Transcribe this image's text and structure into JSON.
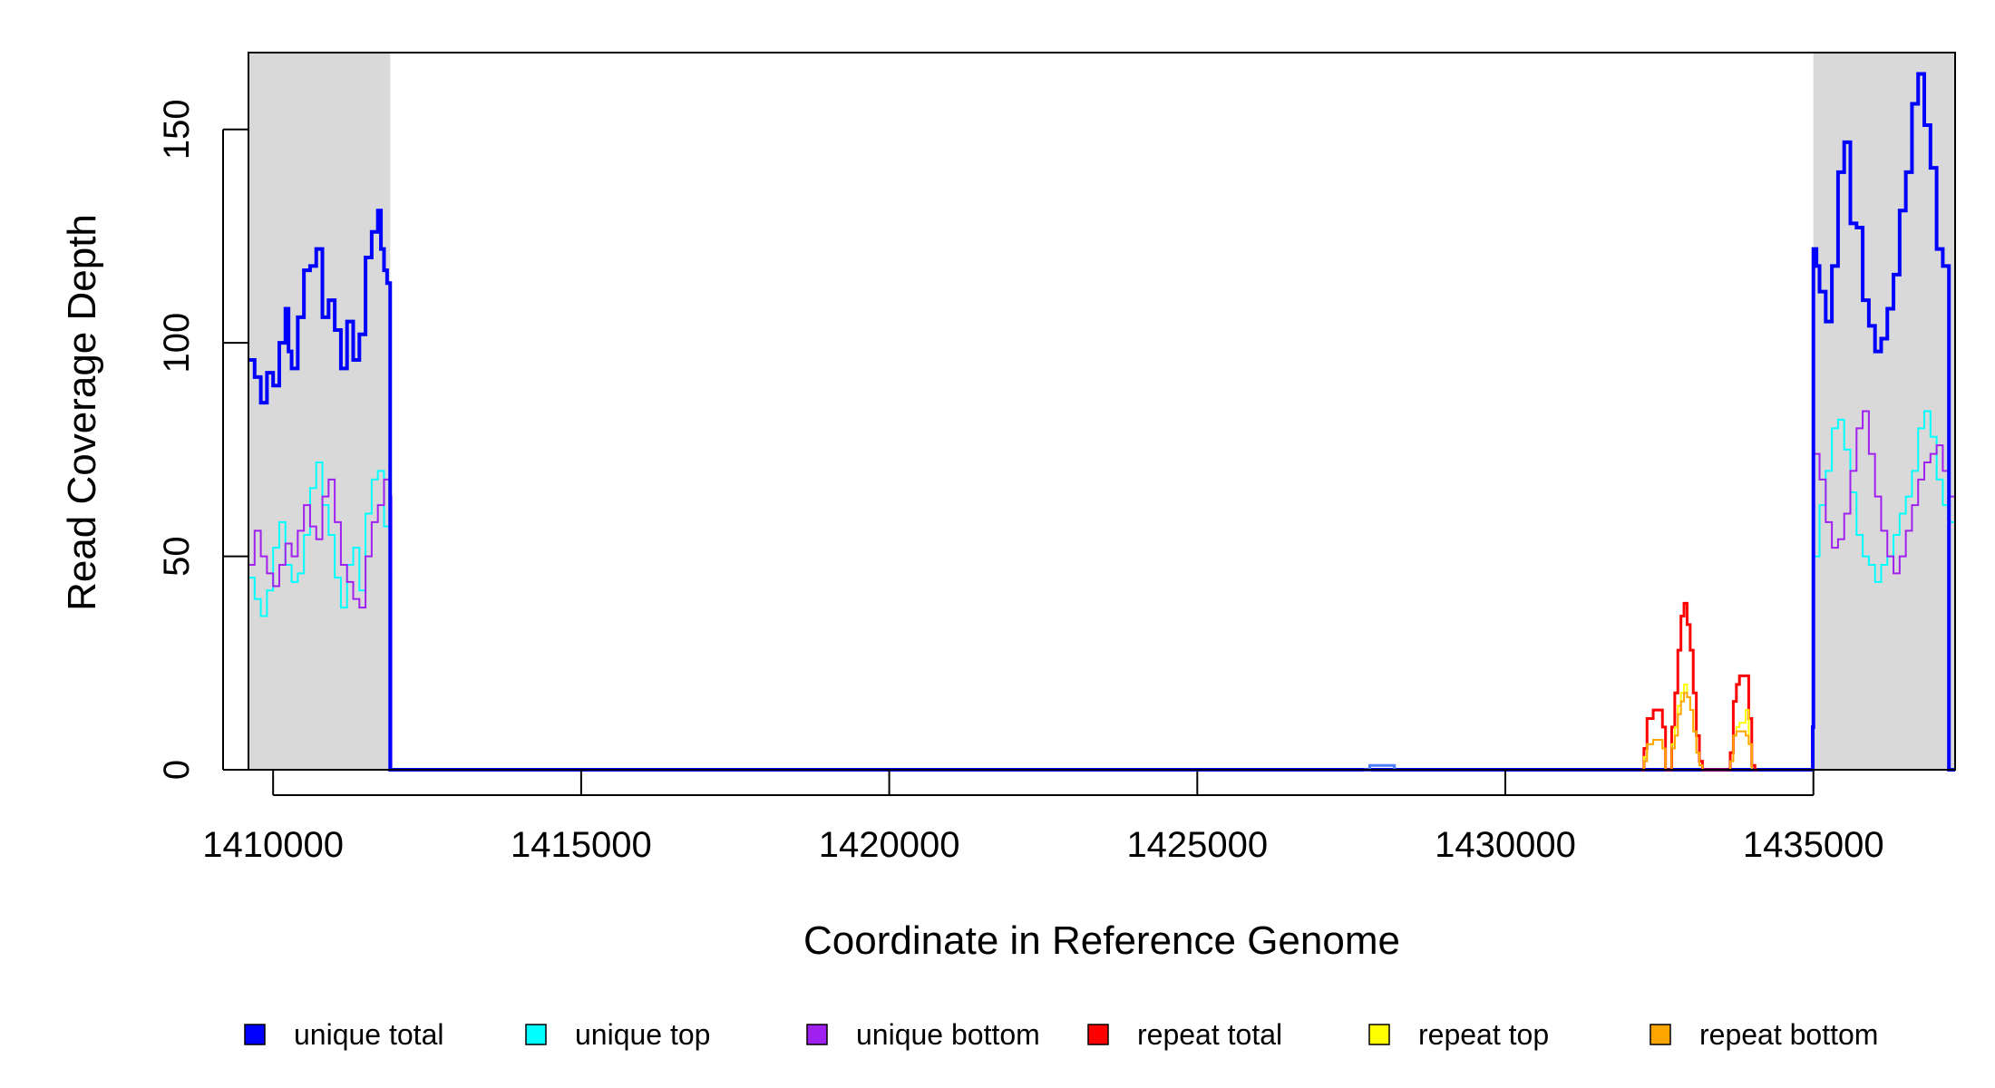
{
  "chart_data": {
    "type": "line",
    "title": "",
    "xlabel": "Coordinate in Reference Genome",
    "ylabel": "Read Coverage Depth",
    "xlim": [
      1409600,
      1437300
    ],
    "ylim": [
      0,
      168
    ],
    "xticks": [
      1410000,
      1415000,
      1420000,
      1425000,
      1430000,
      1435000
    ],
    "yticks": [
      0,
      50,
      100,
      150
    ],
    "shaded_regions": [
      {
        "from": 1409600,
        "to": 1411900,
        "color": "#d9d9d9"
      },
      {
        "from": 1435000,
        "to": 1437300,
        "color": "#d9d9d9"
      }
    ],
    "legend_position": "bottom",
    "series": [
      {
        "name": "unique total",
        "color": "#0000ff",
        "width": 4,
        "x": [
          1409600,
          1409700,
          1409800,
          1409900,
          1410000,
          1410100,
          1410200,
          1410250,
          1410300,
          1410400,
          1410500,
          1410600,
          1410700,
          1410800,
          1410900,
          1411000,
          1411100,
          1411200,
          1411300,
          1411400,
          1411500,
          1411600,
          1411700,
          1411750,
          1411800,
          1411850,
          1411900,
          1411920,
          1411950,
          1434950,
          1434990,
          1435000,
          1435050,
          1435100,
          1435200,
          1435300,
          1435400,
          1435500,
          1435600,
          1435700,
          1435800,
          1435900,
          1436000,
          1436100,
          1436200,
          1436300,
          1436400,
          1436500,
          1436600,
          1436700,
          1436800,
          1436900,
          1437000,
          1437100,
          1437200,
          1437300
        ],
        "y": [
          96,
          92,
          86,
          93,
          90,
          100,
          108,
          98,
          94,
          106,
          117,
          118,
          122,
          106,
          110,
          103,
          94,
          105,
          96,
          102,
          120,
          126,
          131,
          122,
          117,
          114,
          0,
          0,
          0,
          0,
          10,
          122,
          118,
          112,
          105,
          118,
          140,
          147,
          128,
          127,
          110,
          104,
          98,
          101,
          108,
          116,
          131,
          140,
          156,
          163,
          151,
          141,
          122,
          118,
          0,
          0
        ]
      },
      {
        "name": "unique top",
        "color": "#00ffff",
        "width": 2,
        "x": [
          1409600,
          1409700,
          1409800,
          1409900,
          1410000,
          1410100,
          1410200,
          1410300,
          1410400,
          1410500,
          1410600,
          1410700,
          1410800,
          1410900,
          1411000,
          1411100,
          1411200,
          1411300,
          1411400,
          1411500,
          1411600,
          1411700,
          1411800,
          1411900,
          1411920,
          1411950,
          1434950,
          1435000,
          1435100,
          1435200,
          1435300,
          1435400,
          1435500,
          1435600,
          1435700,
          1435800,
          1435900,
          1436000,
          1436100,
          1436200,
          1436300,
          1436400,
          1436500,
          1436600,
          1436700,
          1436800,
          1436900,
          1437000,
          1437100,
          1437200,
          1437300
        ],
        "y": [
          45,
          40,
          36,
          42,
          52,
          58,
          48,
          44,
          46,
          55,
          66,
          72,
          62,
          55,
          45,
          38,
          48,
          52,
          42,
          60,
          68,
          70,
          57,
          45,
          0,
          0,
          0,
          50,
          62,
          70,
          80,
          82,
          75,
          65,
          55,
          50,
          48,
          44,
          48,
          50,
          55,
          60,
          64,
          70,
          80,
          84,
          78,
          68,
          62,
          58,
          0
        ],
        "hidden_under_unique_total_on_chart": false
      },
      {
        "name": "unique bottom",
        "color": "#a020f0",
        "width": 2,
        "x": [
          1409600,
          1409700,
          1409800,
          1409900,
          1410000,
          1410100,
          1410200,
          1410300,
          1410400,
          1410500,
          1410600,
          1410700,
          1410800,
          1410900,
          1411000,
          1411100,
          1411200,
          1411300,
          1411400,
          1411500,
          1411600,
          1411700,
          1411800,
          1411900,
          1411920,
          1411950,
          1434950,
          1435000,
          1435100,
          1435200,
          1435300,
          1435400,
          1435500,
          1435600,
          1435700,
          1435800,
          1435900,
          1436000,
          1436100,
          1436200,
          1436300,
          1436400,
          1436500,
          1436600,
          1436700,
          1436800,
          1436900,
          1437000,
          1437100,
          1437200,
          1437300
        ],
        "y": [
          48,
          56,
          50,
          46,
          43,
          48,
          53,
          50,
          56,
          62,
          57,
          54,
          64,
          68,
          58,
          48,
          44,
          40,
          38,
          50,
          58,
          62,
          68,
          64,
          0,
          0,
          0,
          74,
          68,
          58,
          52,
          54,
          60,
          70,
          80,
          84,
          74,
          64,
          56,
          50,
          46,
          50,
          56,
          62,
          68,
          72,
          74,
          76,
          70,
          64,
          0
        ]
      },
      {
        "name": "repeat total",
        "color": "#ff0000",
        "width": 3,
        "x": [
          1432200,
          1432250,
          1432300,
          1432400,
          1432500,
          1432550,
          1432600,
          1432700,
          1432750,
          1432800,
          1432850,
          1432900,
          1432950,
          1433000,
          1433050,
          1433100,
          1433150,
          1433200,
          1433300,
          1433400,
          1433500,
          1433600,
          1433650,
          1433700,
          1433750,
          1433800,
          1433900,
          1433950,
          1434000,
          1434050,
          1434100
        ],
        "y": [
          0,
          5,
          12,
          14,
          14,
          10,
          0,
          10,
          18,
          28,
          36,
          39,
          34,
          28,
          18,
          8,
          2,
          0,
          0,
          0,
          0,
          0,
          4,
          16,
          20,
          22,
          22,
          12,
          1,
          0,
          0
        ]
      },
      {
        "name": "repeat top",
        "color": "#ffff00",
        "width": 2,
        "x": [
          1432200,
          1432250,
          1432300,
          1432400,
          1432500,
          1432550,
          1432600,
          1432700,
          1432750,
          1432800,
          1432850,
          1432900,
          1432950,
          1433000,
          1433050,
          1433100,
          1433150,
          1433200,
          1433600,
          1433650,
          1433700,
          1433750,
          1433800,
          1433900,
          1433950,
          1434000,
          1434050
        ],
        "y": [
          0,
          3,
          6,
          7,
          7,
          5,
          0,
          6,
          10,
          15,
          18,
          20,
          17,
          14,
          9,
          4,
          1,
          0,
          0,
          2,
          8,
          10,
          11,
          14,
          6,
          0,
          0
        ]
      },
      {
        "name": "repeat bottom",
        "color": "#ffa500",
        "width": 2,
        "x": [
          1432200,
          1432250,
          1432300,
          1432400,
          1432500,
          1432550,
          1432600,
          1432700,
          1432750,
          1432800,
          1432850,
          1432900,
          1432950,
          1433000,
          1433050,
          1433100,
          1433150,
          1433200,
          1433600,
          1433650,
          1433700,
          1433750,
          1433800,
          1433900,
          1433950,
          1434000,
          1434050
        ],
        "y": [
          0,
          2,
          6,
          7,
          7,
          5,
          0,
          5,
          8,
          13,
          16,
          18,
          17,
          14,
          9,
          4,
          1,
          0,
          0,
          2,
          8,
          9,
          9,
          8,
          6,
          0,
          0
        ]
      },
      {
        "name": "",
        "color": "#4f7fff",
        "width": 3,
        "x": [
          1427700,
          1427800,
          1428100,
          1428200
        ],
        "y": [
          0,
          1,
          1,
          0
        ],
        "legend": false
      }
    ]
  }
}
